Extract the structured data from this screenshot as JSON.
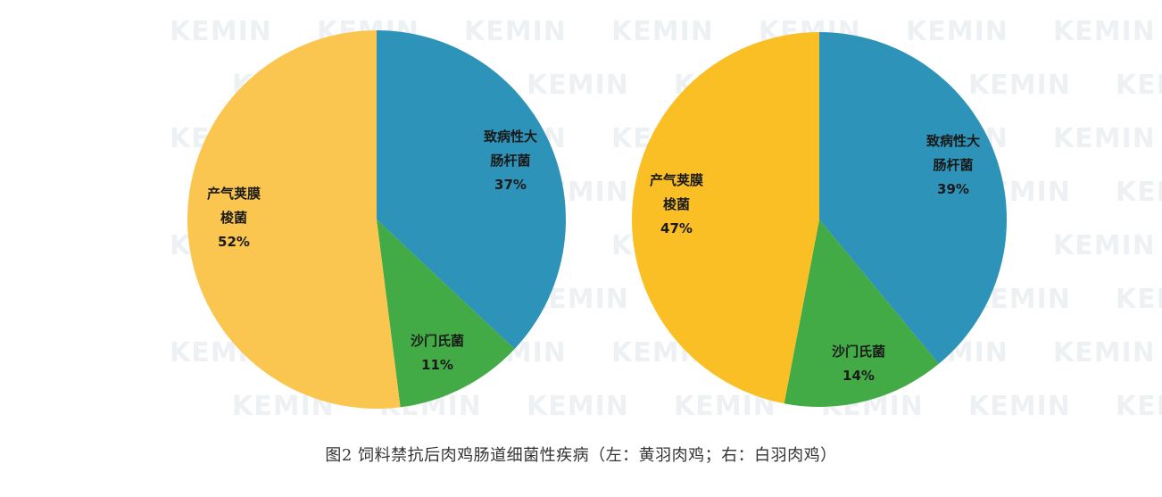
{
  "caption": "图2 饲料禁抗后肉鸡肠道细菌性疾病（左：黄羽肉鸡；右：白羽肉鸡）",
  "watermark": "KEMIN",
  "chart_data": [
    {
      "type": "pie",
      "slices": [
        {
          "label_lines": [
            "致病性大",
            "肠杆菌"
          ],
          "value": 37,
          "value_label": "37%",
          "color": "#2e93b8"
        },
        {
          "label_lines": [
            "沙门氏菌"
          ],
          "value": 11,
          "value_label": "11%",
          "color": "#42ab45"
        },
        {
          "label_lines": [
            "产气荚膜",
            "梭菌"
          ],
          "value": 52,
          "value_label": "52%",
          "color": "#fbc64f"
        }
      ]
    },
    {
      "type": "pie",
      "slices": [
        {
          "label_lines": [
            "致病性大",
            "肠杆菌"
          ],
          "value": 39,
          "value_label": "39%",
          "color": "#2e93b8"
        },
        {
          "label_lines": [
            "沙门氏菌"
          ],
          "value": 14,
          "value_label": "14%",
          "color": "#42ab45"
        },
        {
          "label_lines": [
            "产气荚膜",
            "梭菌"
          ],
          "value": 47,
          "value_label": "47%",
          "color": "#fbbf26"
        }
      ]
    }
  ]
}
